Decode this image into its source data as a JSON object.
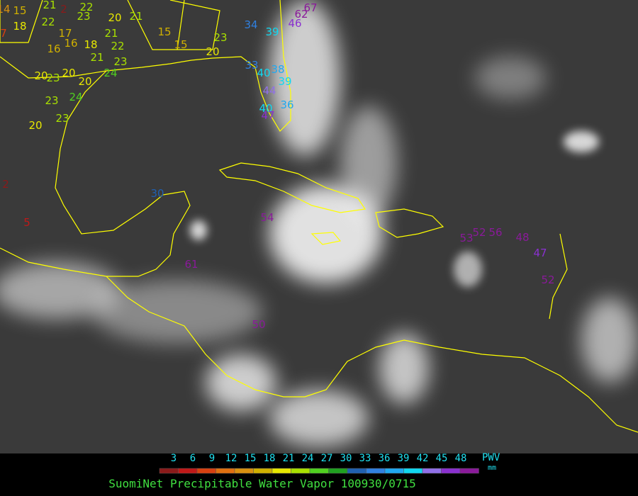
{
  "title": "SuomiNet Precipitable Water Vapor 100930/0715",
  "legend": {
    "label": "PWV",
    "unit": "mm",
    "ticks": [
      3,
      6,
      9,
      12,
      15,
      18,
      21,
      24,
      27,
      30,
      33,
      36,
      39,
      42,
      45,
      48
    ],
    "colors": [
      "#8b1a1a",
      "#c01818",
      "#d84010",
      "#e07010",
      "#d89010",
      "#d0b000",
      "#e8e800",
      "#a8e000",
      "#50d020",
      "#20a020",
      "#2060b0",
      "#3080e0",
      "#20a8f0",
      "#10d8f0",
      "#9070e8",
      "#8a30d0",
      "#8a1a9a"
    ]
  },
  "stations": [
    14,
    15,
    21,
    2,
    22,
    23,
    20,
    21,
    7,
    18,
    22,
    17,
    21,
    15,
    23,
    16,
    16,
    18,
    22,
    15,
    20,
    21,
    23,
    20,
    23,
    20,
    20,
    24,
    23,
    24,
    23,
    20,
    2,
    5,
    30,
    54,
    61,
    50,
    34,
    39,
    46,
    62,
    67,
    33,
    40,
    38,
    44,
    39,
    36,
    40,
    47,
    53,
    52,
    56,
    48,
    47,
    52
  ]
}
